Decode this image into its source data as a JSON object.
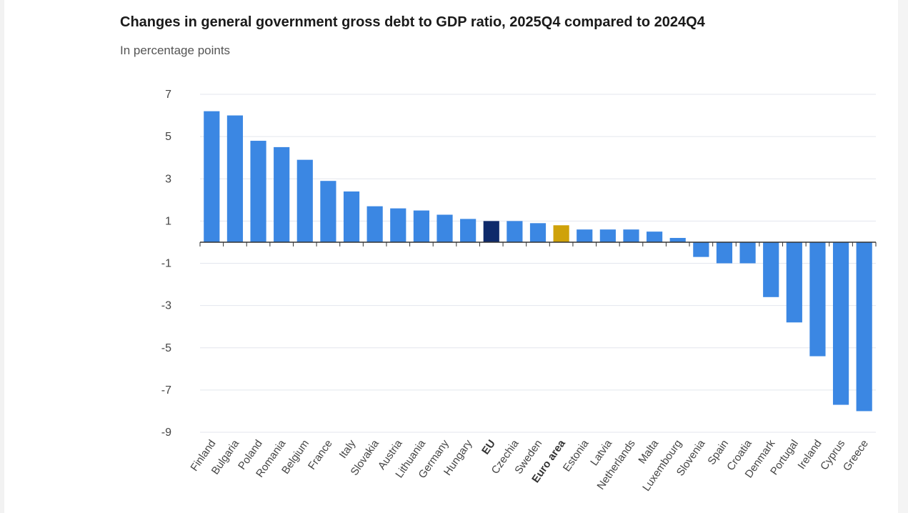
{
  "chart_data": {
    "type": "bar",
    "title": "Changes in general government gross debt to GDP ratio, 2025Q4 compared to 2024Q4",
    "subtitle": "In percentage points",
    "xlabel": "",
    "ylabel": "",
    "ylim": [
      -9,
      7
    ],
    "yticks": [
      7,
      5,
      3,
      1,
      -1,
      -3,
      -5,
      -7,
      -9
    ],
    "grid": true,
    "categories": [
      "Finland",
      "Bulgaria",
      "Poland",
      "Romania",
      "Belgium",
      "France",
      "Italy",
      "Slovakia",
      "Austria",
      "Lithuania",
      "Germany",
      "Hungary",
      "EU",
      "Czechia",
      "Sweden",
      "Euro area",
      "Estonia",
      "Latvia",
      "Netherlands",
      "Malta",
      "Luxembourg",
      "Slovenia",
      "Spain",
      "Croatia",
      "Denmark",
      "Portugal",
      "Ireland",
      "Cyprus",
      "Greece"
    ],
    "values": [
      6.2,
      6.0,
      4.8,
      4.5,
      3.9,
      2.9,
      2.4,
      1.7,
      1.6,
      1.5,
      1.3,
      1.1,
      1.0,
      1.0,
      0.9,
      0.8,
      0.6,
      0.6,
      0.6,
      0.5,
      0.2,
      -0.7,
      -1.0,
      -1.0,
      -2.6,
      -3.8,
      -5.4,
      -7.7,
      -8.0
    ],
    "bold_categories": [
      "EU",
      "Euro area"
    ],
    "colors": {
      "default": "#3b87e3",
      "EU": "#0e2a6b",
      "Euro area": "#cfa20a"
    }
  }
}
